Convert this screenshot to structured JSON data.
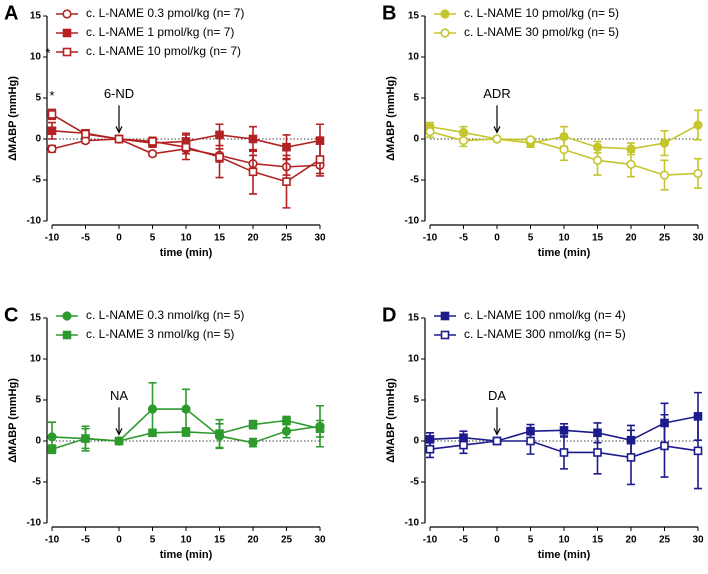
{
  "chart_data": [
    {
      "type": "line",
      "title": "A",
      "xlabel": "time (min)",
      "ylabel": "ΔMABP (mmHg)",
      "x": [
        -10,
        -5,
        0,
        5,
        10,
        15,
        20,
        25,
        30
      ],
      "xlim": [
        -10,
        30
      ],
      "xticks": [
        -10,
        -5,
        0,
        5,
        10,
        15,
        20,
        25,
        30
      ],
      "ylim": [
        -10,
        15
      ],
      "yticks": [
        -10,
        -5,
        0,
        5,
        10,
        15
      ],
      "zero_line": true,
      "arrow_label": "6-ND",
      "arrow_x": 0,
      "significance": "*",
      "significance_x": -10,
      "series": [
        {
          "name": "c. L-NAME 0.3 pmol/kg (n= 7)",
          "color": "#b22222",
          "marker": "circle",
          "filled": false,
          "values": [
            -1.2,
            -0.2,
            0,
            -1.8,
            -1.2,
            -2,
            -3,
            -3.4,
            -3.2
          ],
          "errors": [
            0.4,
            0.3,
            0,
            0.3,
            0.6,
            0.8,
            1,
            1,
            1
          ]
        },
        {
          "name": "c. L-NAME 1 pmol/kg (n= 7)",
          "color": "#b22222",
          "marker": "square",
          "filled": true,
          "values": [
            1,
            0.7,
            0,
            -0.5,
            -0.3,
            0.5,
            0,
            -1,
            -0.2
          ],
          "errors": [
            1,
            0.3,
            0,
            0.5,
            1,
            1.3,
            1.5,
            1.5,
            2
          ]
        },
        {
          "name": "c. L-NAME 10 pmol/kg (n= 7)",
          "color": "#b22222",
          "marker": "square",
          "filled": false,
          "values": [
            3,
            0.6,
            0,
            -0.3,
            -1,
            -2.2,
            -4,
            -5.2,
            -2.5
          ],
          "errors": [
            0.6,
            0.3,
            0,
            0.5,
            1.5,
            2.5,
            2.7,
            3.2,
            2
          ]
        }
      ]
    },
    {
      "type": "line",
      "title": "B",
      "xlabel": "time (min)",
      "ylabel": "ΔMABP (mmHg)",
      "x": [
        -10,
        -5,
        0,
        5,
        10,
        15,
        20,
        25,
        30
      ],
      "xlim": [
        -10,
        30
      ],
      "xticks": [
        -10,
        -5,
        0,
        5,
        10,
        15,
        20,
        25,
        30
      ],
      "ylim": [
        -10,
        15
      ],
      "yticks": [
        -10,
        -5,
        0,
        5,
        10,
        15
      ],
      "zero_line": true,
      "arrow_label": "ADR",
      "arrow_x": 0,
      "series": [
        {
          "name": "c. L-NAME 10 pmol/kg (n= 5)",
          "color": "#c5c52e",
          "marker": "circle",
          "filled": true,
          "values": [
            1.5,
            0.8,
            0,
            -0.5,
            0.3,
            -1,
            -1.2,
            -0.5,
            1.7
          ],
          "errors": [
            0.5,
            0.7,
            0,
            0.5,
            1.2,
            0.7,
            0.7,
            1.5,
            1.8
          ]
        },
        {
          "name": "c. L-NAME 30 pmol/kg (n= 5)",
          "color": "#c5c52e",
          "marker": "circle",
          "filled": false,
          "values": [
            0.9,
            -0.2,
            0,
            -0.1,
            -1.3,
            -2.6,
            -3.1,
            -4.4,
            -4.2
          ],
          "errors": [
            0.7,
            0.7,
            0,
            0.3,
            1.3,
            1.8,
            1.5,
            1.8,
            1.8
          ]
        }
      ]
    },
    {
      "type": "line",
      "title": "C",
      "xlabel": "time (min)",
      "ylabel": "ΔMABP (mmHg)",
      "x": [
        -10,
        -5,
        0,
        5,
        10,
        15,
        20,
        25,
        30
      ],
      "xlim": [
        -10,
        30
      ],
      "xticks": [
        -10,
        -5,
        0,
        5,
        10,
        15,
        20,
        25,
        30
      ],
      "ylim": [
        -10,
        15
      ],
      "yticks": [
        -10,
        -5,
        0,
        5,
        10,
        15
      ],
      "zero_line": true,
      "arrow_label": "NA",
      "arrow_x": 0,
      "series": [
        {
          "name": "c. L-NAME 0.3 nmol/kg (n= 5)",
          "color": "#2e9a2e",
          "marker": "circle",
          "filled": true,
          "values": [
            0.5,
            0.3,
            0,
            3.9,
            3.9,
            0.6,
            -0.2,
            1.2,
            1.8
          ],
          "errors": [
            1.8,
            1.5,
            0,
            3.2,
            2.4,
            1.5,
            0.5,
            0.8,
            2.5
          ]
        },
        {
          "name": "c. L-NAME 3 nmol/kg (n= 5)",
          "color": "#2e9a2e",
          "marker": "square",
          "filled": true,
          "values": [
            -1,
            0.3,
            0,
            1,
            1.1,
            0.9,
            2,
            2.5,
            1.5
          ],
          "errors": [
            0.5,
            1.2,
            0,
            0.3,
            0.5,
            1.7,
            0.5,
            0.5,
            1
          ]
        }
      ]
    },
    {
      "type": "line",
      "title": "D",
      "xlabel": "time (min)",
      "ylabel": "ΔMABP (mmHg)",
      "x": [
        -10,
        -5,
        0,
        5,
        10,
        15,
        20,
        25,
        30
      ],
      "xlim": [
        -10,
        30
      ],
      "xticks": [
        -10,
        -5,
        0,
        5,
        10,
        15,
        20,
        25,
        30
      ],
      "ylim": [
        -10,
        15
      ],
      "yticks": [
        -10,
        -5,
        0,
        5,
        10,
        15
      ],
      "zero_line": true,
      "arrow_label": "DA",
      "arrow_x": 0,
      "series": [
        {
          "name": "c. L-NAME 100 nmol/kg (n= 4)",
          "color": "#1c1c8c",
          "marker": "square",
          "filled": true,
          "values": [
            0.2,
            0.4,
            0,
            1.2,
            1.3,
            1,
            0.1,
            2.2,
            3
          ],
          "errors": [
            0.8,
            0.8,
            0,
            0.8,
            0.8,
            1.2,
            1.8,
            2.4,
            2.9
          ]
        },
        {
          "name": "c. L-NAME 300 nmol/kg (n= 5)",
          "color": "#1c1c8c",
          "marker": "square",
          "filled": false,
          "values": [
            -1,
            -0.5,
            0,
            0,
            -1.4,
            -1.4,
            -2,
            -0.6,
            -1.2
          ],
          "errors": [
            1,
            1,
            0,
            1.6,
            2,
            2.6,
            3.3,
            3.8,
            4.6
          ]
        }
      ]
    }
  ]
}
